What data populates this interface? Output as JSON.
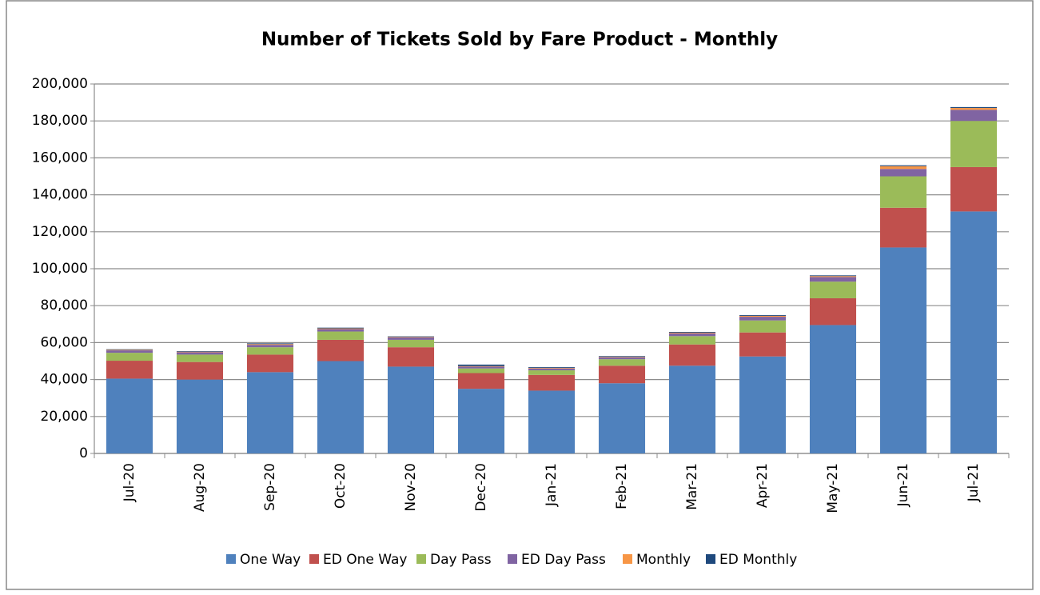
{
  "chart_data": {
    "type": "stacked_bar",
    "title": "Number of Tickets Sold by Fare Product - Monthly",
    "categories": [
      "Jul-20",
      "Aug-20",
      "Sep-20",
      "Oct-20",
      "Nov-20",
      "Dec-20",
      "Jan-21",
      "Feb-21",
      "Mar-21",
      "Apr-21",
      "May-21",
      "Jun-21",
      "Jul-21"
    ],
    "series": [
      {
        "name": "One Way",
        "color": "#4f81bd",
        "values": [
          40500,
          40000,
          44000,
          50000,
          47000,
          35000,
          34000,
          38000,
          47500,
          52500,
          69500,
          111500,
          131000
        ]
      },
      {
        "name": "ED One Way",
        "color": "#c0504d",
        "values": [
          9700,
          9500,
          9500,
          11500,
          10500,
          8500,
          8500,
          9500,
          11500,
          13000,
          14500,
          21500,
          24000
        ]
      },
      {
        "name": "Day Pass",
        "color": "#9bbb59",
        "values": [
          4300,
          4000,
          4000,
          4500,
          4000,
          2500,
          2500,
          3500,
          4500,
          6500,
          9000,
          17000,
          25000
        ]
      },
      {
        "name": "ED Day Pass",
        "color": "#8064a2",
        "values": [
          1300,
          1300,
          1300,
          1300,
          1300,
          1000,
          1000,
          1000,
          1500,
          2000,
          2500,
          4000,
          6000
        ]
      },
      {
        "name": "Monthly",
        "color": "#f79646",
        "values": [
          300,
          300,
          400,
          400,
          300,
          300,
          300,
          300,
          400,
          500,
          500,
          1500,
          1000
        ]
      },
      {
        "name": "ED Monthly",
        "color": "#1f497d",
        "values": [
          300,
          300,
          400,
          400,
          300,
          800,
          400,
          400,
          400,
          400,
          400,
          500,
          500
        ]
      }
    ],
    "ylim": [
      0,
      200000
    ],
    "yticks": [
      0,
      {
        "value": 20000,
        "label": "20,000"
      },
      {
        "value": 40000,
        "label": "40,000"
      },
      {
        "value": 60000,
        "label": "60,000"
      },
      {
        "value": 80000,
        "label": "80,000"
      },
      {
        "value": 100000,
        "label": "100,000"
      },
      {
        "value": 120000,
        "label": "120,000"
      },
      {
        "value": 140000,
        "label": "140,000"
      },
      {
        "value": 160000,
        "label": "160,000"
      },
      {
        "value": 180000,
        "label": "180,000"
      },
      {
        "value": 200000,
        "label": "200,000"
      }
    ],
    "grid": true,
    "legend": "bottom"
  }
}
